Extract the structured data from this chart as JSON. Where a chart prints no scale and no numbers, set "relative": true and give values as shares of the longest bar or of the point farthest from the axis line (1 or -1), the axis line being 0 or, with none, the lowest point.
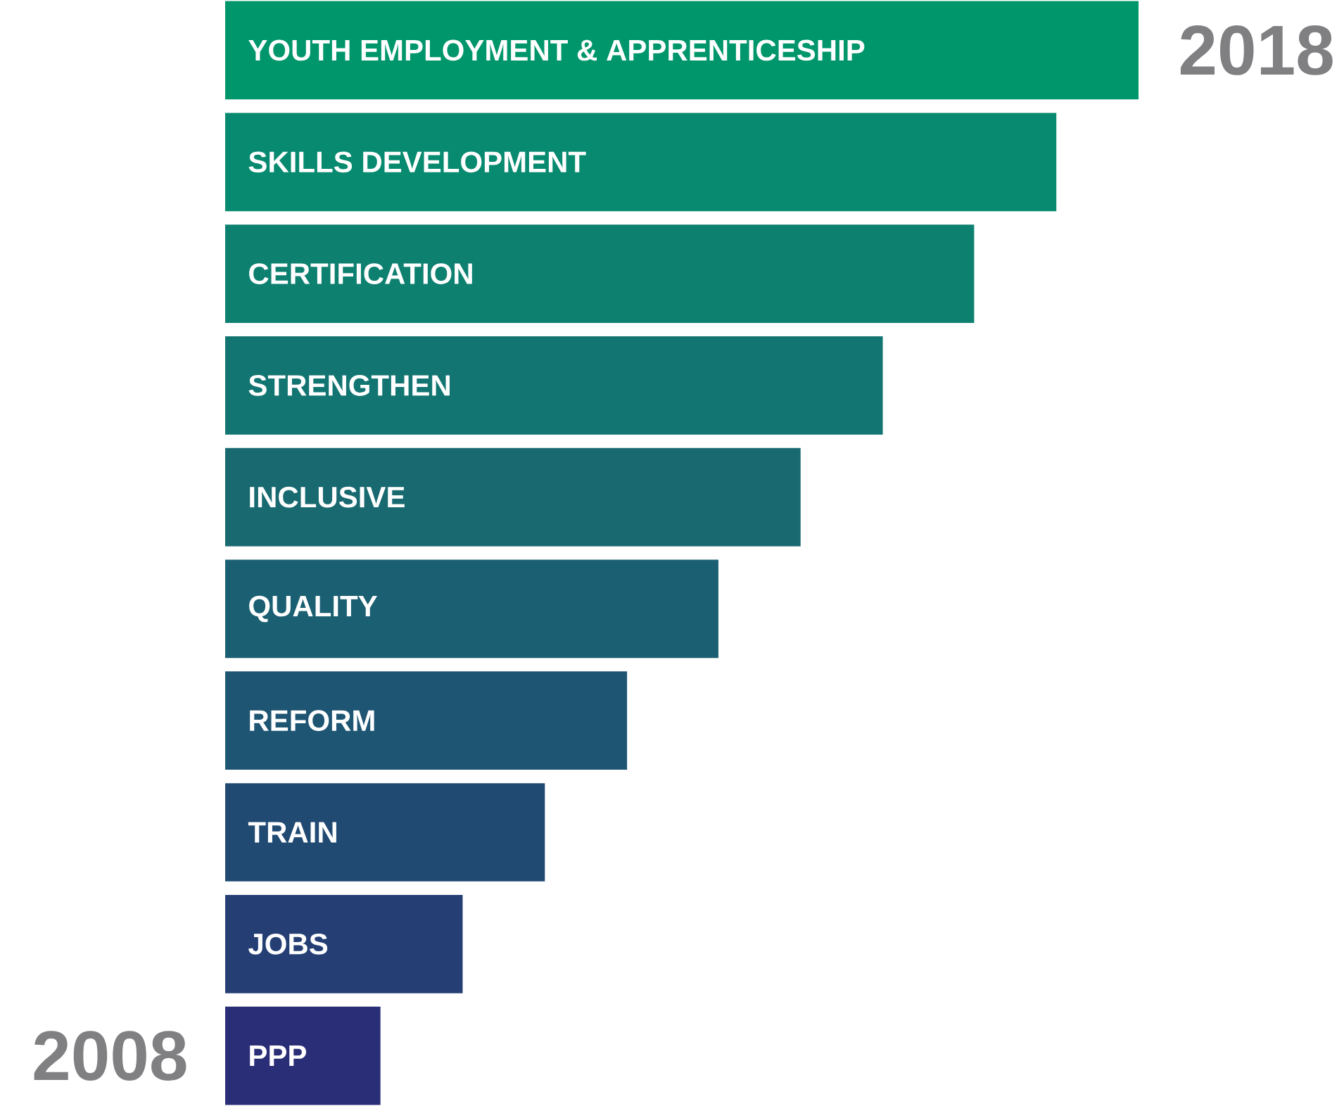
{
  "chart_data": {
    "type": "bar",
    "orientation": "horizontal",
    "relative": true,
    "categories": [
      "YOUTH EMPLOYMENT  & APPRENTICESHIP",
      "SKILLS DEVELOPMENT",
      "CERTIFICATION",
      "STRENGTHEN",
      "INCLUSIVE",
      "QUALITY",
      "REFORM",
      "TRAIN",
      "JOBS",
      "PPP"
    ],
    "values": [
      1,
      0.91,
      0.82,
      0.72,
      0.63,
      0.54,
      0.44,
      0.35,
      0.26,
      0.17
    ],
    "colors": [
      "#00966b",
      "#078a6f",
      "#0d8070",
      "#127572",
      "#186a70",
      "#1b5f72",
      "#1e5573",
      "#214a73",
      "#253f75",
      "#2a2e77"
    ],
    "annotations": [
      "2018",
      "2008"
    ]
  }
}
